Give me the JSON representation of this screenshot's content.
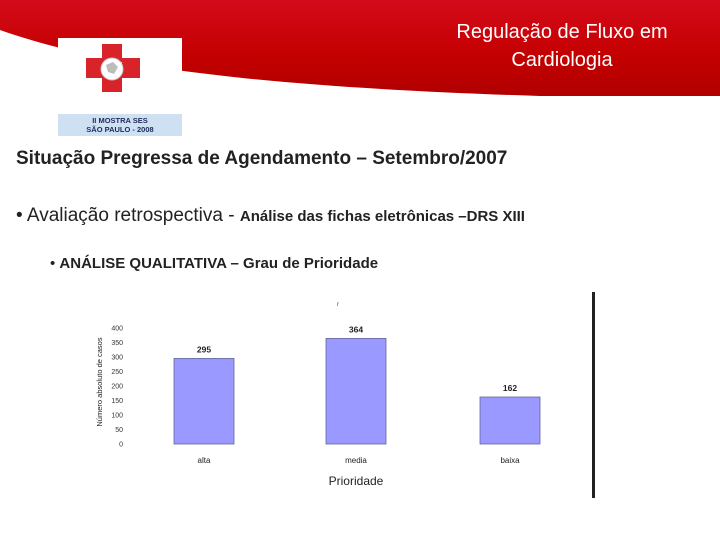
{
  "header": {
    "title_line1": "Regulação de Fluxo em",
    "title_line2": "Cardiologia"
  },
  "logo": {
    "line1": "II MOSTRA SES",
    "line2": "SÃO PAULO - 2008"
  },
  "section_title": "Situação Pregressa de Agendamento – Setembro/2007",
  "bullet1": {
    "lead": "• Avaliação retrospectiva - ",
    "detail": "Análise das fichas eletrônicas –DRS XIII"
  },
  "bullet2": {
    "dot": "• ",
    "text": "ANÁLISE QUALITATIVA – Grau de Prioridade"
  },
  "colors": {
    "header_red": "#c30000",
    "bar_fill": "#9999ff",
    "bar_stroke": "#666699"
  },
  "chart_data": {
    "type": "bar",
    "categories": [
      "alta",
      "media",
      "baixa"
    ],
    "values": [
      295,
      364,
      162
    ],
    "title": "",
    "xlabel": "Prioridade",
    "ylabel": "Número absoluto de casos",
    "yticks": [
      "400",
      "350",
      "300",
      "250",
      "200",
      "150",
      "100",
      "50",
      "0"
    ],
    "ylim": [
      0,
      400
    ],
    "grid": false,
    "legend": "none"
  }
}
